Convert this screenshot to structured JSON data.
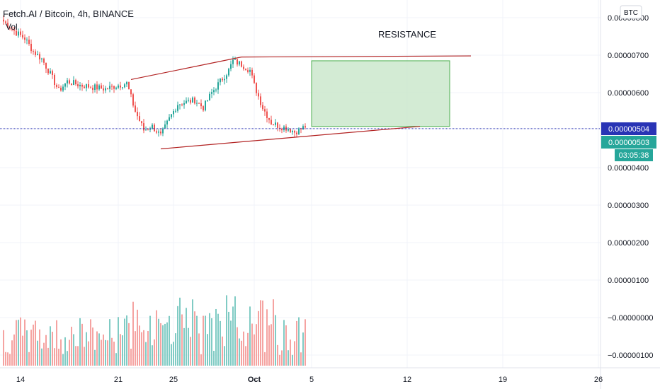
{
  "legend": {
    "title": "Fetch.AI / Bitcoin, 4h, BINANCE",
    "vol_label": "Vol"
  },
  "currency_button": "BTC",
  "colors": {
    "up": "#26a69a",
    "down": "#ef5350",
    "vol_up": "#80cbc4",
    "vol_down": "#f5a3a1",
    "current_price_line": "#2934b5",
    "trendline": "#b22222",
    "target_fill": "#c8e6c9",
    "target_stroke": "#4caf50"
  },
  "chart_data": {
    "type": "candlestick",
    "title": "Fetch.AI / Bitcoin, 4h, BINANCE",
    "x_tick_labels": [
      "14",
      "21",
      "25",
      "Oct",
      "5",
      "12",
      "19",
      "26"
    ],
    "y_tick_labels": [
      "0.00000800",
      "0.00000700",
      "0.00000600",
      "0.00000400",
      "0.00000300",
      "0.00000200",
      "0.00000100",
      "−0.00000000",
      "−0.00000100"
    ],
    "y_ticks": [
      8.0,
      7.0,
      6.0,
      4.0,
      3.0,
      2.0,
      1.0,
      0.0,
      -1.0
    ],
    "y_unit_note": "values in 1e-6 BTC",
    "ylim": [
      -1.2,
      8.5
    ],
    "current_price": {
      "value": 5.04,
      "label": "0.00000504"
    },
    "last_close": {
      "value": 5.03,
      "label": "0.00000503",
      "countdown": "03:05:38"
    },
    "price_anchors": [
      [
        0,
        7.9
      ],
      [
        6,
        7.6
      ],
      [
        10,
        7.45
      ],
      [
        14,
        7.1
      ],
      [
        18,
        6.9
      ],
      [
        22,
        6.5
      ],
      [
        26,
        6.05
      ],
      [
        30,
        6.3
      ],
      [
        36,
        6.2
      ],
      [
        42,
        6.15
      ],
      [
        48,
        6.1
      ],
      [
        54,
        6.2
      ],
      [
        58,
        6.25
      ],
      [
        62,
        5.5
      ],
      [
        66,
        5.0
      ],
      [
        70,
        5.1
      ],
      [
        74,
        4.85
      ],
      [
        78,
        5.3
      ],
      [
        82,
        5.7
      ],
      [
        86,
        5.75
      ],
      [
        90,
        5.8
      ],
      [
        94,
        5.6
      ],
      [
        98,
        6.0
      ],
      [
        102,
        6.3
      ],
      [
        106,
        6.6
      ],
      [
        108,
        6.85
      ],
      [
        112,
        6.75
      ],
      [
        116,
        6.6
      ],
      [
        118,
        6.2
      ],
      [
        122,
        5.6
      ],
      [
        126,
        5.2
      ],
      [
        130,
        5.1
      ],
      [
        134,
        5.05
      ],
      [
        137,
        4.95
      ],
      [
        140,
        5.03
      ],
      [
        142,
        5.1
      ]
    ],
    "annotations": [
      {
        "type": "text",
        "text": "RESISTANCE"
      },
      {
        "type": "target_box",
        "price_top": 6.85,
        "price_bottom": 5.1
      },
      {
        "type": "trendline",
        "name": "upper",
        "points": [
          [
            60,
            6.35
          ],
          [
            112,
            6.95
          ]
        ]
      },
      {
        "type": "trendline",
        "name": "resistance",
        "points": [
          [
            112,
            6.95
          ],
          [
            220,
            6.98
          ]
        ]
      },
      {
        "type": "trendline",
        "name": "lower",
        "points": [
          [
            74,
            4.5
          ],
          [
            196,
            5.1
          ]
        ]
      }
    ]
  }
}
